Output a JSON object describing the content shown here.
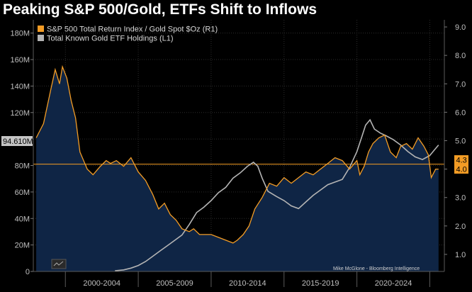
{
  "chart_data": {
    "type": "line",
    "title": "Peaking S&P 500/Gold, ETFs Shift to Inflows",
    "source": "Mike McGlone - Bloomberg Intelligence",
    "left_axis": {
      "ylim": [
        0,
        190
      ],
      "ticks": [
        0,
        20,
        40,
        60,
        80,
        100,
        120,
        140,
        160,
        180
      ],
      "tick_labels": [
        "0",
        "20M",
        "40M",
        "60M",
        "80M",
        "100M",
        "120M",
        "140M",
        "160M",
        "180M"
      ]
    },
    "right_axis": {
      "ylim": [
        0.4,
        9.25
      ],
      "ticks": [
        1,
        2,
        3,
        4,
        5,
        6,
        7,
        8,
        9
      ],
      "tick_labels": [
        "1.0",
        "2.0",
        "3.0",
        "4.0",
        "5.0",
        "6.0",
        "7.0",
        "8.0",
        "9.0"
      ]
    },
    "x_range": [
      1997.8,
      2026.0
    ],
    "x_tick_positions": [
      2000,
      2005,
      2010,
      2015,
      2020,
      2025
    ],
    "x_tick_labels": [
      "2000-2004",
      "2005-2009",
      "2010-2014",
      "2015-2019",
      "2020-2024"
    ],
    "reference_line": 81,
    "last_value_labels": {
      "left": "94.610M",
      "right_upper": "4.3",
      "right_lower": "4.0"
    },
    "series": [
      {
        "name": "S&P 500 Total Return Index / Gold Spot $Oz (R1)",
        "axis": "right",
        "color": "#f39c25",
        "x": [
          1998.0,
          1998.5,
          1999.0,
          1999.3,
          1999.6,
          1999.8,
          2000.1,
          2000.4,
          2000.7,
          2001.0,
          2001.5,
          2001.9,
          2002.4,
          2002.8,
          2003.1,
          2003.5,
          2004.0,
          2004.5,
          2005.0,
          2005.5,
          2006.0,
          2006.4,
          2006.8,
          2007.2,
          2007.6,
          2008.0,
          2008.5,
          2008.8,
          2009.2,
          2009.6,
          2010.0,
          2010.5,
          2011.0,
          2011.5,
          2011.8,
          2012.2,
          2012.6,
          2013.0,
          2013.5,
          2014.0,
          2014.5,
          2015.0,
          2015.5,
          2016.0,
          2016.5,
          2017.0,
          2017.5,
          2018.0,
          2018.5,
          2019.0,
          2019.5,
          2020.0,
          2020.2,
          2020.5,
          2020.8,
          2021.1,
          2021.5,
          2021.9,
          2022.3,
          2022.7,
          2023.0,
          2023.4,
          2023.8,
          2024.2,
          2024.6,
          2024.9,
          2025.1,
          2025.4,
          2025.6
        ],
        "values": [
          5.1,
          5.6,
          6.8,
          7.5,
          7.0,
          7.6,
          7.2,
          6.4,
          5.8,
          4.6,
          4.0,
          3.8,
          4.1,
          4.3,
          4.2,
          4.3,
          4.1,
          4.4,
          3.9,
          3.6,
          3.1,
          2.6,
          2.8,
          2.4,
          2.2,
          1.9,
          1.8,
          1.9,
          1.7,
          1.7,
          1.7,
          1.6,
          1.5,
          1.4,
          1.5,
          1.7,
          2.0,
          2.6,
          3.0,
          3.5,
          3.4,
          3.7,
          3.5,
          3.7,
          3.9,
          3.8,
          4.0,
          4.2,
          4.4,
          4.3,
          4.0,
          4.3,
          3.8,
          4.1,
          4.6,
          4.9,
          5.1,
          5.2,
          4.6,
          4.4,
          4.8,
          4.9,
          4.7,
          5.1,
          4.8,
          4.5,
          3.7,
          4.0,
          4.0
        ]
      },
      {
        "name": "Total Known Gold ETF Holdings (L1)",
        "axis": "left",
        "color": "#b4b4b4",
        "x": [
          2003.4,
          2004.0,
          2004.5,
          2005.0,
          2005.5,
          2006.0,
          2006.5,
          2007.0,
          2007.5,
          2008.0,
          2008.5,
          2009.0,
          2009.5,
          2010.0,
          2010.5,
          2011.0,
          2011.5,
          2012.0,
          2012.5,
          2012.9,
          2013.2,
          2013.5,
          2013.9,
          2014.5,
          2015.0,
          2015.5,
          2016.0,
          2016.5,
          2017.0,
          2017.5,
          2018.0,
          2018.5,
          2019.0,
          2019.5,
          2020.0,
          2020.3,
          2020.6,
          2020.9,
          2021.2,
          2021.6,
          2022.0,
          2022.5,
          2023.0,
          2023.5,
          2024.0,
          2024.5,
          2025.0,
          2025.3,
          2025.6
        ],
        "values": [
          0.5,
          1.2,
          2.5,
          4.5,
          7.5,
          11.5,
          15.5,
          19.5,
          23.5,
          27.5,
          35.5,
          44.5,
          48.5,
          53.5,
          59.5,
          63.5,
          70.5,
          74.5,
          79.5,
          82.5,
          79.5,
          70.5,
          60.5,
          56.5,
          53.5,
          49.5,
          47.5,
          52.5,
          57.5,
          61.5,
          65.5,
          67.5,
          69.5,
          78.5,
          90.5,
          100.5,
          110.5,
          114.5,
          107.5,
          104.5,
          102.5,
          99.5,
          95.5,
          90.5,
          86.5,
          84.5,
          87.5,
          91.5,
          95.5
        ]
      }
    ],
    "legend": {
      "items": [
        "S&P 500 Total Return Index / Gold Spot $Oz (R1)",
        "Total Known Gold ETF Holdings (L1)"
      ],
      "placement": "top-left"
    },
    "colors": {
      "background": "#000000",
      "area": "#0f2545",
      "sp_gold": "#f39c25",
      "gold_etf": "#b4b4b4",
      "reference": "#f39c25",
      "grid": "#2c2c2c"
    }
  }
}
